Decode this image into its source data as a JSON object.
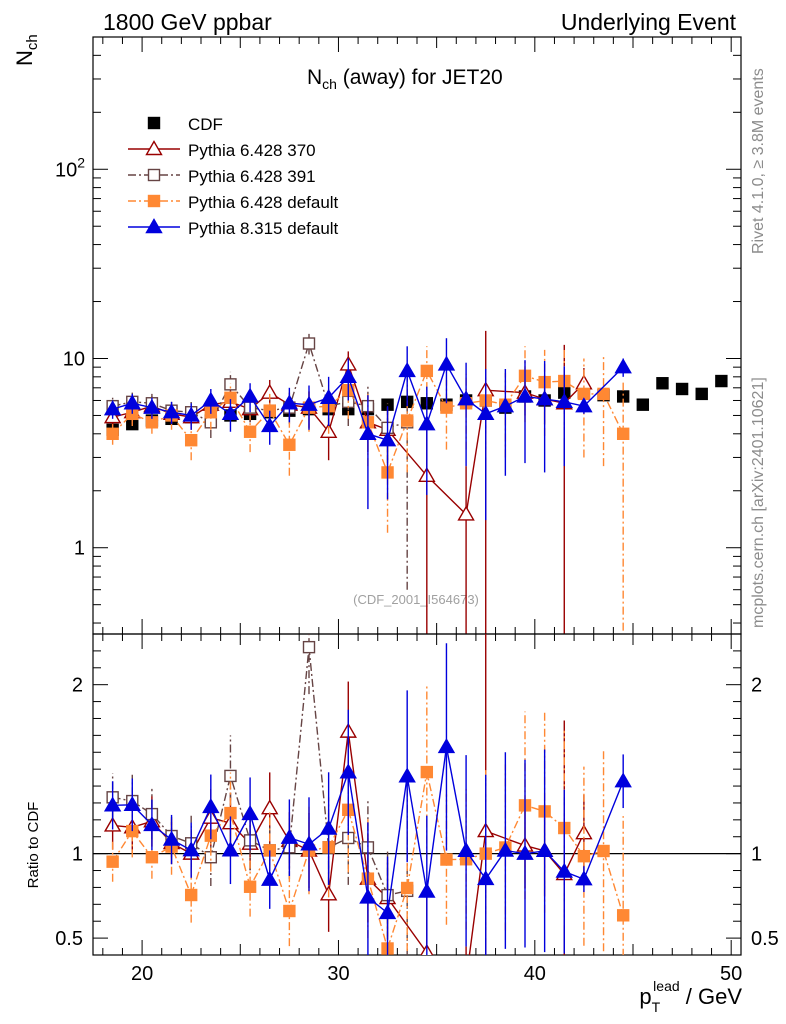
{
  "header": {
    "left": "1800 GeV ppbar",
    "right": "Underlying Event"
  },
  "side_labels": {
    "rivet": "Rivet 4.1.0, ≥ 3.8M events",
    "mcplots": "mcplots.cern.ch [arXiv:2401.10621]"
  },
  "colors": {
    "cdf": "#000000",
    "py370": "#990000",
    "py391": "#664444",
    "py6def": "#ff8833",
    "py8def": "#0000dd"
  },
  "chart_data": {
    "type": "scatter",
    "title_main": "N",
    "title_sub": "ch",
    "title_rest": " (away) for JET20",
    "ylabel_main": "N",
    "ylabel_sub": "ch",
    "watermark": "(CDF_2001_I564673)",
    "xlabel_main": "p",
    "xlabel_sub": "T",
    "xlabel_sup": "lead",
    "xlabel_rest": " / GeV",
    "ratio_ylabel": "Ratio to CDF",
    "xlim": [
      17.5,
      50.5
    ],
    "ylim": [
      0.35,
      500
    ],
    "yscale": "log",
    "ratio_ylim": [
      0.4,
      2.3
    ],
    "x_ticks": [
      "20",
      "30",
      "40",
      "50"
    ],
    "x_tick_values": [
      20,
      30,
      40,
      50
    ],
    "y_ticks": [
      {
        "value": 1,
        "base": "1",
        "exp": ""
      },
      {
        "value": 10,
        "base": "10",
        "exp": ""
      },
      {
        "value": 100,
        "base": "10",
        "exp": "2"
      }
    ],
    "ratio_ticks": [
      {
        "value": 0.5,
        "label": "0.5"
      },
      {
        "value": 1,
        "label": "1"
      },
      {
        "value": 2,
        "label": "2"
      }
    ],
    "legend": [
      {
        "key": "cdf",
        "label": "CDF"
      },
      {
        "key": "py370",
        "label": "Pythia 6.428 370"
      },
      {
        "key": "py391",
        "label": "Pythia 6.428 391"
      },
      {
        "key": "py6def",
        "label": "Pythia 6.428 default"
      },
      {
        "key": "py8def",
        "label": "Pythia 8.315 default"
      }
    ],
    "series": [
      {
        "key": "cdf",
        "name": "CDF",
        "marker": "square-filled",
        "dash": "none",
        "line": false,
        "x": [
          18.5,
          19.5,
          20.5,
          21.5,
          22.5,
          23.5,
          24.5,
          25.5,
          26.5,
          27.5,
          28.5,
          29.5,
          30.5,
          31.5,
          32.5,
          33.5,
          34.5,
          35.5,
          36.5,
          37.5,
          38.5,
          39.5,
          40.5,
          41.5,
          42.5,
          43.5,
          44.5,
          45.5,
          46.5,
          47.5,
          48.5,
          49.5
        ],
        "y": [
          4.2,
          4.5,
          4.7,
          4.8,
          4.9,
          4.7,
          5.0,
          5.1,
          5.2,
          5.3,
          5.4,
          5.4,
          5.4,
          5.4,
          5.7,
          5.9,
          5.8,
          5.7,
          6.0,
          6.0,
          5.5,
          6.3,
          6.0,
          6.6,
          6.6,
          6.4,
          6.3,
          5.7,
          7.4,
          6.9,
          6.5,
          7.6
        ]
      },
      {
        "key": "py370",
        "name": "Pythia 6.428 370",
        "marker": "triangle-open",
        "dash": "none",
        "line": true,
        "x": [
          18.5,
          19.5,
          20.5,
          21.5,
          22.5,
          23.5,
          24.5,
          25.5,
          26.5,
          27.5,
          28.5,
          29.5,
          30.5,
          31.5,
          32.5,
          34.5,
          36.5,
          37.5,
          39.5,
          40.5,
          41.5,
          42.5
        ],
        "y": [
          4.9,
          5.2,
          5.6,
          5.1,
          4.9,
          5.7,
          5.9,
          5.4,
          6.6,
          5.7,
          5.5,
          4.1,
          9.3,
          4.6,
          4.2,
          2.4,
          1.5,
          6.8,
          6.6,
          6.1,
          5.8,
          7.4
        ],
        "err": [
          0.6,
          0.7,
          0.7,
          0.6,
          0.7,
          0.8,
          0.9,
          0.8,
          1.1,
          0.9,
          1.2,
          1.2,
          1.6,
          1.4,
          1.3,
          2.2,
          1.2,
          7.2,
          1.6,
          1.6,
          6.0,
          1.5
        ]
      },
      {
        "key": "py391",
        "name": "Pythia 6.428 391",
        "marker": "square-open",
        "dash": "dashdot",
        "line": true,
        "x": [
          18.5,
          19.5,
          20.5,
          21.5,
          22.5,
          23.5,
          24.5,
          25.5,
          26.5,
          27.5,
          28.5,
          29.5,
          30.5,
          31.5,
          32.5,
          33.5
        ],
        "y": [
          5.6,
          5.9,
          5.8,
          5.3,
          5.2,
          4.6,
          7.3,
          5.5,
          5.3,
          5.5,
          12.0,
          5.6,
          5.9,
          5.6,
          4.3,
          4.6
        ],
        "err": [
          0.6,
          0.7,
          0.7,
          0.6,
          0.8,
          0.8,
          1.2,
          0.9,
          1.0,
          1.0,
          1.5,
          1.2,
          1.5,
          1.5,
          1.5,
          4.0
        ]
      },
      {
        "key": "py6def",
        "name": "Pythia 6.428 default",
        "marker": "square-filled",
        "dash": "dashdot",
        "line": true,
        "x": [
          18.5,
          19.5,
          20.5,
          21.5,
          22.5,
          23.5,
          24.5,
          25.5,
          26.5,
          27.5,
          28.5,
          29.5,
          30.5,
          31.5,
          32.5,
          33.5,
          34.5,
          35.5,
          36.5,
          37.5,
          38.5,
          39.5,
          40.5,
          41.5,
          42.5,
          43.5,
          44.5
        ],
        "y": [
          4.0,
          5.1,
          4.6,
          5.0,
          3.7,
          5.2,
          6.2,
          4.1,
          5.3,
          3.5,
          5.5,
          5.6,
          6.8,
          4.6,
          2.5,
          4.7,
          8.6,
          5.5,
          5.8,
          6.0,
          5.7,
          8.1,
          7.5,
          7.6,
          6.5,
          6.5,
          4.0
        ],
        "err": [
          0.5,
          0.7,
          0.6,
          0.8,
          0.8,
          1.0,
          1.2,
          0.9,
          1.2,
          1.1,
          1.4,
          1.6,
          2.0,
          1.9,
          1.3,
          2.2,
          3.0,
          2.2,
          2.5,
          3.0,
          2.7,
          3.5,
          3.6,
          3.8,
          3.5,
          3.8,
          3.7
        ]
      },
      {
        "key": "py8def",
        "name": "Pythia 8.315 default",
        "marker": "triangle-filled",
        "dash": "none",
        "line": true,
        "x": [
          18.5,
          19.5,
          20.5,
          21.5,
          22.5,
          23.5,
          24.5,
          25.5,
          26.5,
          27.5,
          28.5,
          29.5,
          30.5,
          31.5,
          32.5,
          33.5,
          34.5,
          35.5,
          36.5,
          37.5,
          38.5,
          39.5,
          40.5,
          41.5,
          42.5,
          44.5
        ],
        "y": [
          5.4,
          5.8,
          5.5,
          5.2,
          5.0,
          6.0,
          5.1,
          6.3,
          4.4,
          5.8,
          5.7,
          6.2,
          8.0,
          4.0,
          3.7,
          8.6,
          4.5,
          9.3,
          6.1,
          5.1,
          5.6,
          6.3,
          6.1,
          5.9,
          5.6,
          9.0
        ],
        "err": [
          0.6,
          0.7,
          0.7,
          0.7,
          0.8,
          0.9,
          1.0,
          1.1,
          0.9,
          1.2,
          1.5,
          1.8,
          2.0,
          2.4,
          1.9,
          3.0,
          2.6,
          3.5,
          3.4,
          3.7,
          3.2,
          3.5,
          3.6,
          3.2,
          0.5,
          1.0
        ]
      }
    ]
  }
}
